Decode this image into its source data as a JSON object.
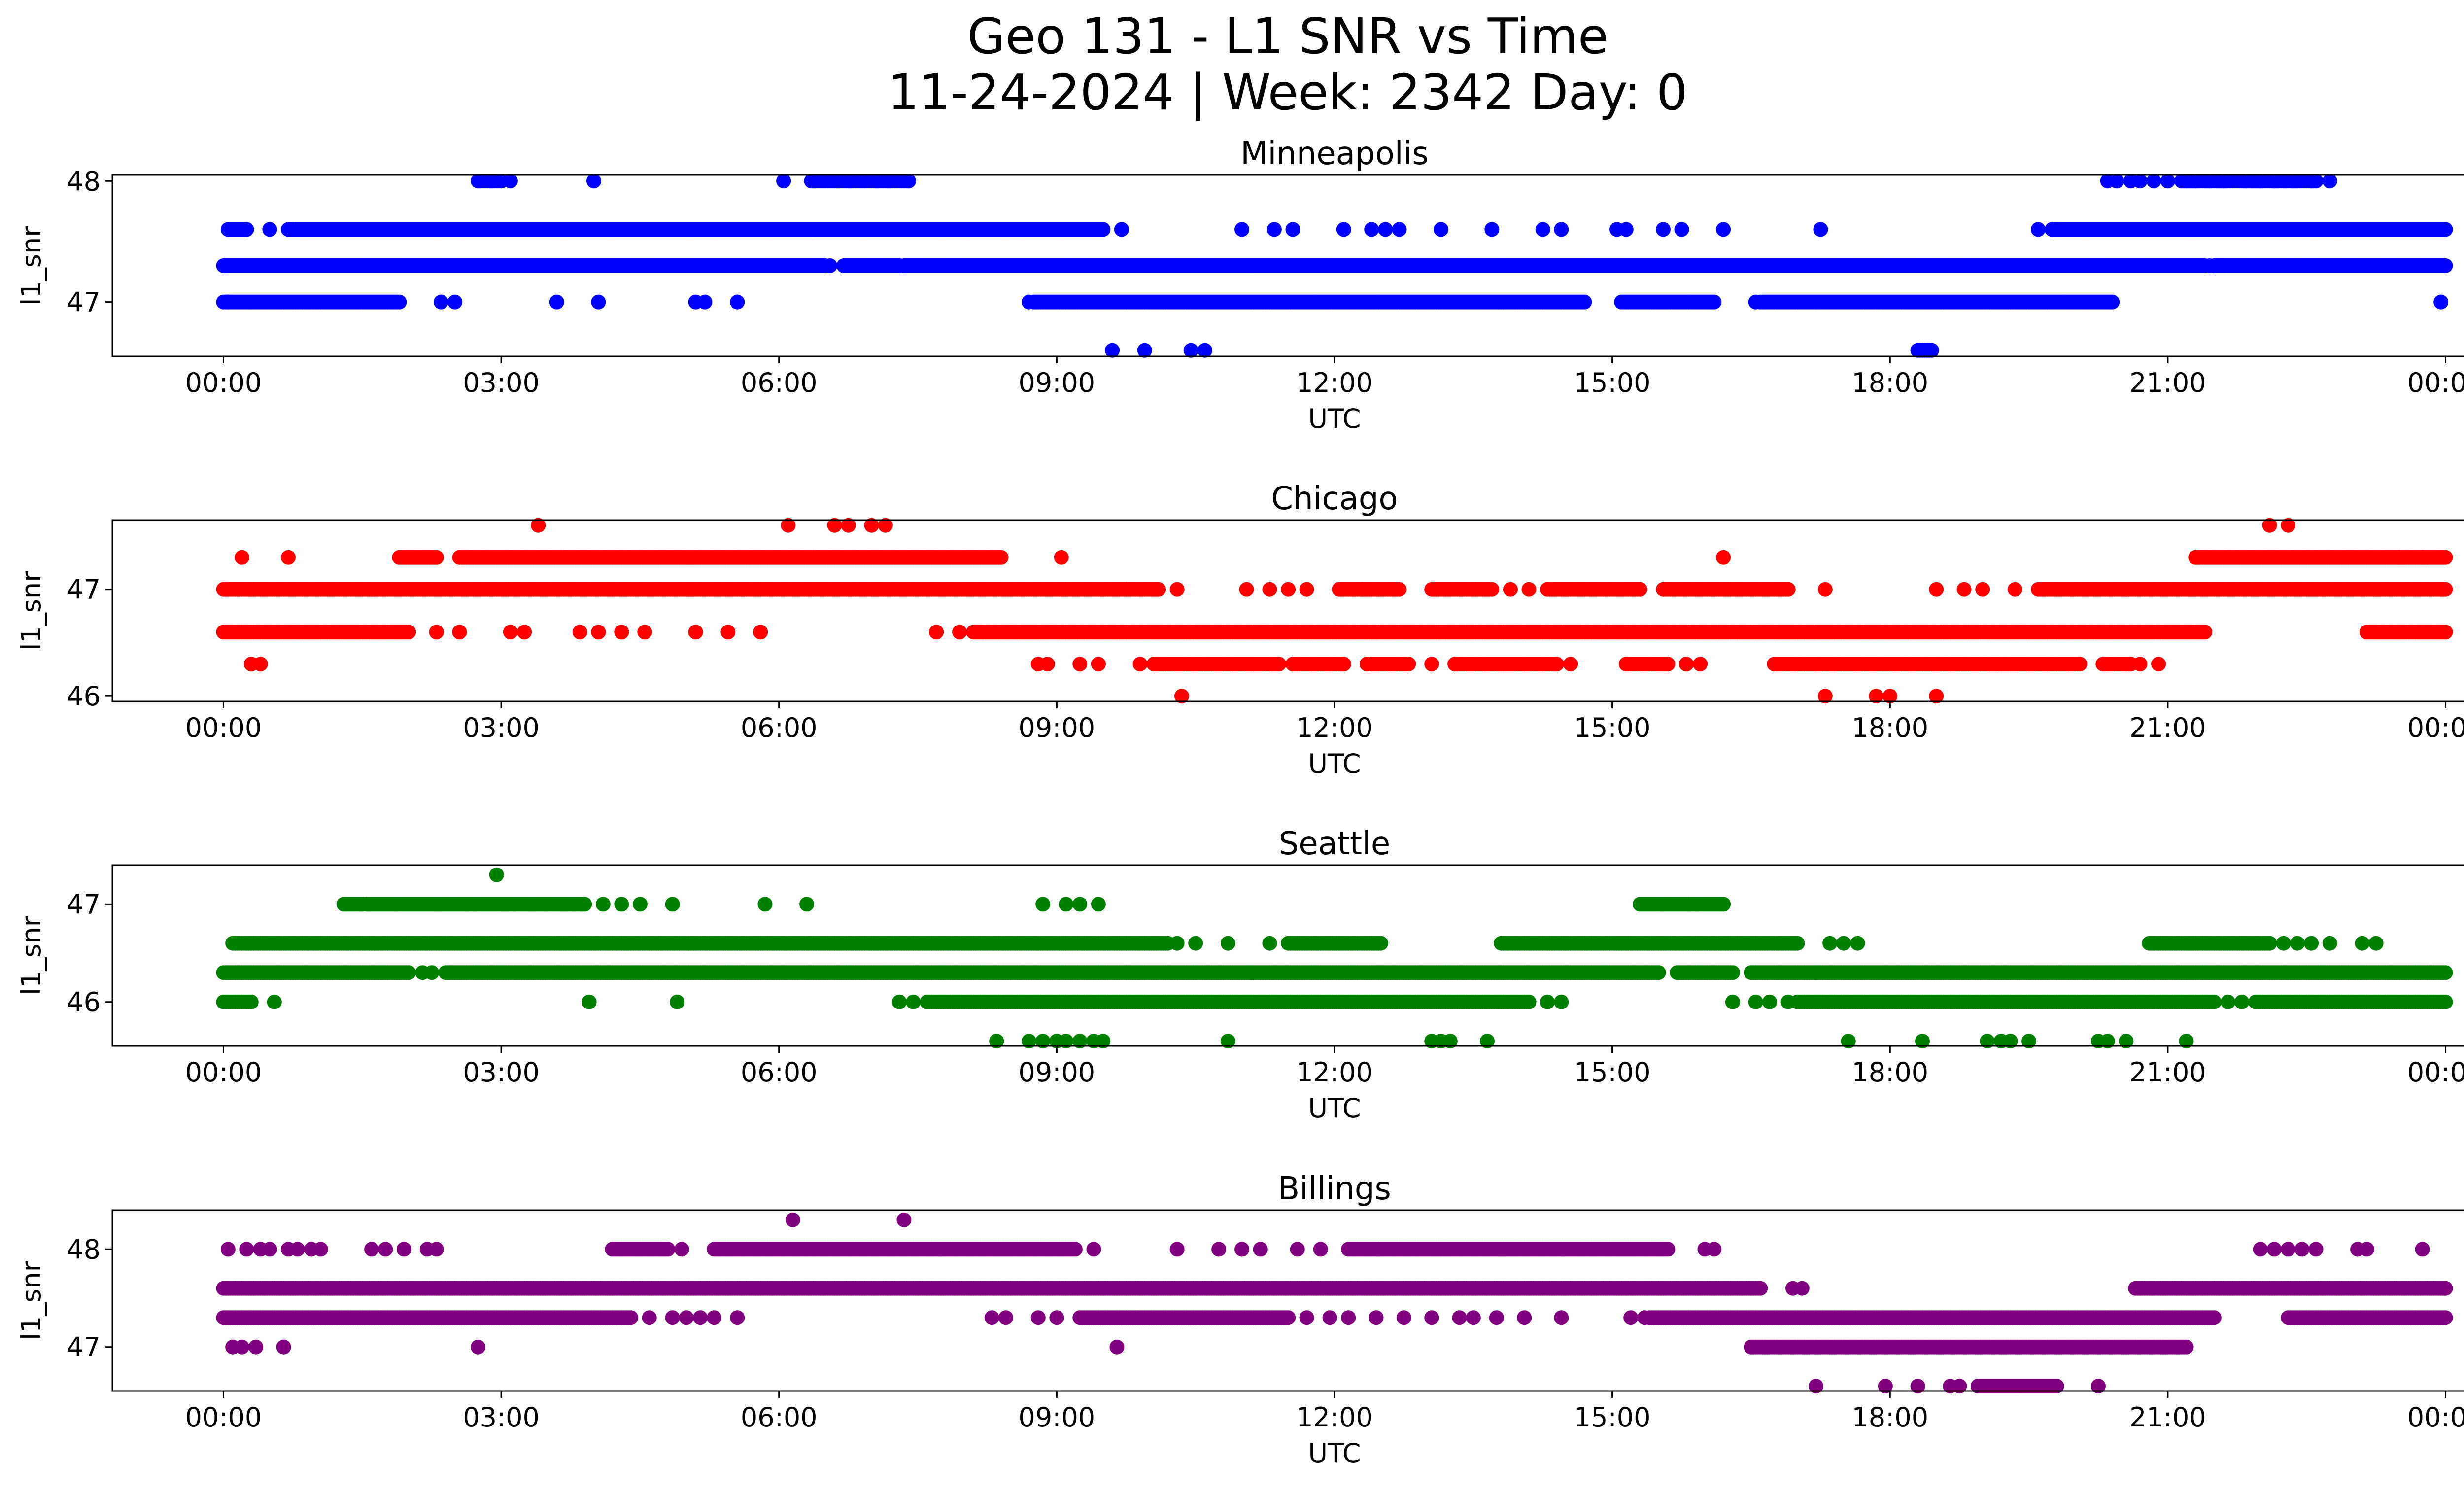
{
  "figure": {
    "title_line1": "Geo 131 - L1 SNR vs Time",
    "title_line2": "11-24-2024 | Week: 2342 Day: 0"
  },
  "chart_data": [
    {
      "type": "scatter",
      "title": "Minneapolis",
      "color": "#0000ff",
      "xlabel": "UTC",
      "ylabel": "l1_snr",
      "xunit": "hours",
      "xlim": [
        -1.2,
        25.2
      ],
      "ylim": [
        46.55,
        48.05
      ],
      "xticks": [
        0,
        3,
        6,
        9,
        12,
        15,
        18,
        21,
        24
      ],
      "xticklabels": [
        "00:00",
        "03:00",
        "06:00",
        "09:00",
        "12:00",
        "15:00",
        "18:00",
        "21:00",
        "00:00"
      ],
      "yticks": [
        47,
        48
      ],
      "yticklabels": [
        "47",
        "48"
      ],
      "levels": [
        {
          "y": 48.0,
          "ranges": [
            [
              2.75,
              3.0
            ]
          ],
          "points": [
            3.1,
            4.0,
            6.05,
            20.35,
            20.45,
            20.6,
            20.7,
            20.85,
            21.0,
            21.2,
            21.3,
            21.45,
            21.6,
            21.85,
            22.0,
            22.15,
            22.35,
            22.55,
            22.75
          ],
          "ranges2": [
            [
              6.35,
              7.4
            ],
            [
              21.15,
              22.6
            ]
          ]
        },
        {
          "y": 47.6,
          "ranges": [
            [
              0.05,
              0.25
            ],
            [
              0.7,
              9.5
            ],
            [
              19.75,
              24.0
            ]
          ],
          "points": [
            0.5,
            9.7,
            11.0,
            11.35,
            11.55,
            12.1,
            12.4,
            12.55,
            12.7,
            13.15,
            13.7,
            14.25,
            14.45,
            15.05,
            15.15,
            15.55,
            15.75,
            16.2,
            17.25,
            19.6
          ]
        },
        {
          "y": 47.3,
          "ranges": [
            [
              0.0,
              6.5
            ],
            [
              6.7,
              7.3
            ],
            [
              7.35,
              21.4
            ],
            [
              21.5,
              24.0
            ]
          ],
          "points": [
            6.55,
            21.45,
            21.6
          ]
        },
        {
          "y": 47.0,
          "ranges": [
            [
              0.0,
              1.9
            ],
            [
              8.75,
              14.7
            ],
            [
              15.1,
              16.1
            ],
            [
              16.6,
              20.4
            ]
          ],
          "points": [
            0.05,
            2.35,
            2.5,
            3.6,
            4.05,
            5.1,
            5.2,
            5.55,
            8.7,
            16.55,
            23.95
          ]
        },
        {
          "y": 46.6,
          "ranges": [
            [
              18.3,
              18.45
            ]
          ],
          "points": [
            9.6,
            9.95,
            10.45,
            10.6
          ]
        }
      ]
    },
    {
      "type": "scatter",
      "title": "Chicago",
      "color": "#ff0000",
      "xlabel": "UTC",
      "ylabel": "l1_snr",
      "xunit": "hours",
      "xlim": [
        -1.2,
        25.2
      ],
      "ylim": [
        45.95,
        47.65
      ],
      "xticks": [
        0,
        3,
        6,
        9,
        12,
        15,
        18,
        21,
        24
      ],
      "xticklabels": [
        "00:00",
        "03:00",
        "06:00",
        "09:00",
        "12:00",
        "15:00",
        "18:00",
        "21:00",
        "00:00"
      ],
      "yticks": [
        46,
        47
      ],
      "yticklabels": [
        "46",
        "47"
      ],
      "levels": [
        {
          "y": 47.6,
          "points": [
            3.4,
            6.1,
            6.6,
            6.75,
            7.0,
            7.15,
            22.1,
            22.3
          ]
        },
        {
          "y": 47.3,
          "ranges": [
            [
              1.9,
              2.3
            ],
            [
              2.55,
              8.4
            ],
            [
              21.3,
              24.0
            ]
          ],
          "points": [
            0.2,
            0.7,
            9.05,
            16.2,
            23.5,
            23.75
          ]
        },
        {
          "y": 47.0,
          "ranges": [
            [
              0.0,
              10.1
            ],
            [
              12.05,
              12.7
            ],
            [
              13.05,
              13.7
            ],
            [
              14.3,
              15.3
            ],
            [
              15.55,
              16.9
            ],
            [
              19.6,
              24.0
            ]
          ],
          "points": [
            10.3,
            11.05,
            11.3,
            11.5,
            11.7,
            12.3,
            13.9,
            14.1,
            17.3,
            18.5,
            18.8,
            19.0,
            19.35
          ]
        },
        {
          "y": 46.6,
          "ranges": [
            [
              0.0,
              2.0
            ],
            [
              8.1,
              21.4
            ],
            [
              23.15,
              24.0
            ]
          ],
          "points": [
            2.3,
            2.55,
            3.1,
            3.25,
            3.85,
            4.05,
            4.3,
            4.55,
            5.1,
            5.45,
            5.8,
            7.7,
            7.95,
            8.2
          ]
        },
        {
          "y": 46.3,
          "ranges": [
            [
              10.05,
              11.4
            ],
            [
              11.55,
              12.1
            ],
            [
              12.4,
              12.8
            ],
            [
              13.3,
              14.4
            ],
            [
              15.15,
              15.6
            ],
            [
              16.75,
              20.05
            ],
            [
              20.3,
              20.6
            ]
          ],
          "points": [
            0.3,
            0.4,
            8.8,
            8.9,
            9.25,
            9.45,
            9.9,
            12.35,
            13.05,
            14.55,
            15.8,
            15.95,
            20.7,
            20.9
          ]
        },
        {
          "y": 46.0,
          "points": [
            10.35,
            17.3,
            17.85,
            18.0,
            18.5
          ]
        }
      ]
    },
    {
      "type": "scatter",
      "title": "Seattle",
      "color": "#008000",
      "xlabel": "UTC",
      "ylabel": "l1_snr",
      "xunit": "hours",
      "xlim": [
        -1.2,
        25.2
      ],
      "ylim": [
        45.55,
        47.4
      ],
      "xticks": [
        0,
        3,
        6,
        9,
        12,
        15,
        18,
        21,
        24
      ],
      "xticklabels": [
        "00:00",
        "03:00",
        "06:00",
        "09:00",
        "12:00",
        "15:00",
        "18:00",
        "21:00",
        "00:00"
      ],
      "yticks": [
        46,
        47
      ],
      "yticklabels": [
        "46",
        "47"
      ],
      "levels": [
        {
          "y": 47.3,
          "points": [
            2.95
          ]
        },
        {
          "y": 47.0,
          "ranges": [
            [
              1.3,
              1.5
            ],
            [
              1.55,
              3.9
            ],
            [
              15.3,
              16.2
            ]
          ],
          "points": [
            4.1,
            4.3,
            4.5,
            4.85,
            5.85,
            6.3,
            8.85,
            9.1,
            9.25,
            9.45
          ]
        },
        {
          "y": 46.6,
          "ranges": [
            [
              0.1,
              10.2
            ],
            [
              11.5,
              12.5
            ],
            [
              13.8,
              17.0
            ],
            [
              20.8,
              22.1
            ]
          ],
          "points": [
            10.3,
            10.5,
            10.85,
            11.3,
            17.35,
            17.5,
            17.65,
            22.25,
            22.4,
            22.55,
            22.75,
            23.1,
            23.25
          ]
        },
        {
          "y": 46.3,
          "ranges": [
            [
              0.0,
              2.0
            ],
            [
              2.4,
              15.5
            ],
            [
              15.7,
              16.3
            ],
            [
              16.5,
              24.0
            ]
          ],
          "points": [
            2.15,
            2.25
          ]
        },
        {
          "y": 46.0,
          "ranges": [
            [
              0.0,
              0.3
            ],
            [
              7.6,
              14.1
            ],
            [
              17.0,
              21.5
            ],
            [
              21.95,
              24.0
            ]
          ],
          "points": [
            0.55,
            3.95,
            4.9,
            7.3,
            7.45,
            14.3,
            14.45,
            16.3,
            16.55,
            16.7,
            16.9,
            21.65,
            21.8
          ]
        },
        {
          "y": 45.6,
          "points": [
            8.35,
            8.7,
            8.85,
            9.0,
            9.1,
            9.25,
            9.4,
            9.5,
            10.85,
            13.05,
            13.15,
            13.25,
            13.65,
            17.55,
            18.35,
            19.05,
            19.2,
            19.3,
            19.5,
            20.25,
            20.35,
            20.55,
            21.2
          ]
        }
      ]
    },
    {
      "type": "scatter",
      "title": "Billings",
      "color": "#800080",
      "xlabel": "UTC",
      "ylabel": "l1_snr",
      "xunit": "hours",
      "xlim": [
        -1.2,
        25.2
      ],
      "ylim": [
        46.55,
        48.4
      ],
      "xticks": [
        0,
        3,
        6,
        9,
        12,
        15,
        18,
        21,
        24
      ],
      "xticklabels": [
        "00:00",
        "03:00",
        "06:00",
        "09:00",
        "12:00",
        "15:00",
        "18:00",
        "21:00",
        "00:00"
      ],
      "yticks": [
        47,
        48
      ],
      "yticklabels": [
        "47",
        "48"
      ],
      "levels": [
        {
          "y": 48.3,
          "points": [
            6.15,
            7.35
          ]
        },
        {
          "y": 48.0,
          "ranges": [
            [
              4.2,
              4.8
            ],
            [
              5.3,
              9.2
            ],
            [
              12.15,
              15.6
            ]
          ],
          "points": [
            0.05,
            0.25,
            0.4,
            0.5,
            0.7,
            0.8,
            0.95,
            1.05,
            1.6,
            1.75,
            1.95,
            2.2,
            2.3,
            4.95,
            9.4,
            10.3,
            10.75,
            11.0,
            11.2,
            11.6,
            11.85,
            16.0,
            16.1,
            22.0,
            22.15,
            22.3,
            22.45,
            22.6,
            23.05,
            23.15,
            23.75
          ]
        },
        {
          "y": 47.6,
          "ranges": [
            [
              0.0,
              16.6
            ],
            [
              20.65,
              24.0
            ]
          ],
          "points": [
            16.95,
            17.05
          ]
        },
        {
          "y": 47.3,
          "ranges": [
            [
              0.0,
              4.4
            ],
            [
              9.25,
              11.5
            ],
            [
              15.4,
              21.5
            ],
            [
              22.3,
              24.0
            ]
          ],
          "points": [
            4.6,
            4.85,
            5.0,
            5.15,
            5.3,
            5.55,
            8.3,
            8.45,
            8.8,
            9.0,
            11.7,
            11.95,
            12.15,
            12.45,
            12.75,
            13.05,
            13.35,
            13.5,
            13.75,
            14.05,
            14.45,
            15.2,
            15.35
          ]
        },
        {
          "y": 47.0,
          "ranges": [
            [
              16.5,
              21.2
            ]
          ],
          "points": [
            0.1,
            0.2,
            0.35,
            0.65,
            2.75,
            9.65
          ]
        },
        {
          "y": 46.6,
          "ranges": [
            [
              18.95,
              19.8
            ]
          ],
          "points": [
            17.2,
            17.95,
            18.3,
            18.65,
            18.75,
            20.25
          ]
        }
      ]
    }
  ]
}
